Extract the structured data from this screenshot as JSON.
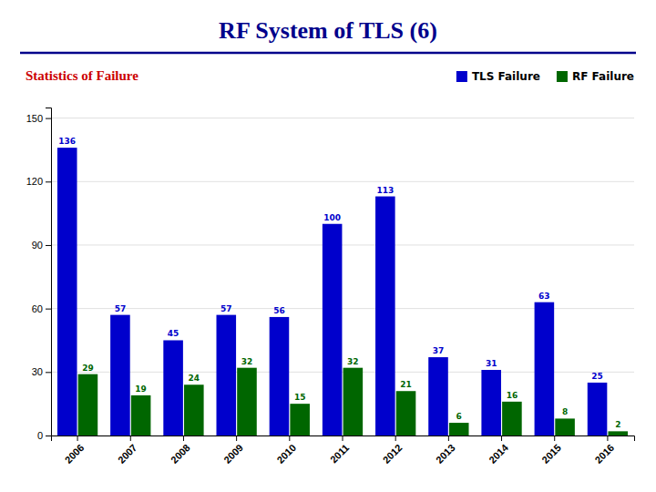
{
  "chart_data": {
    "type": "bar",
    "title": "RF System of TLS (6)",
    "subtitle": "Statistics of Failure",
    "categories": [
      "2006",
      "2007",
      "2008",
      "2009",
      "2010",
      "2011",
      "2012",
      "2013",
      "2014",
      "2015",
      "2016"
    ],
    "series": [
      {
        "name": "TLS Failure",
        "color": "#0000CC",
        "values": [
          136,
          57,
          45,
          57,
          56,
          100,
          113,
          37,
          31,
          63,
          25
        ]
      },
      {
        "name": "RF Failure",
        "color": "#006600",
        "values": [
          29,
          19,
          24,
          32,
          15,
          32,
          21,
          6,
          16,
          8,
          2
        ]
      }
    ],
    "ylim": [
      0,
      155
    ],
    "yticks": [
      0,
      30,
      60,
      90,
      120,
      150
    ],
    "grid": true,
    "legend": "top",
    "data_labels": true
  }
}
